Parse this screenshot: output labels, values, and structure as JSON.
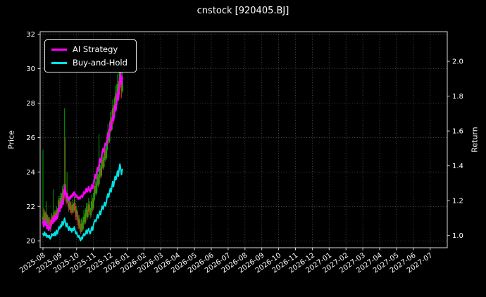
{
  "header": {
    "title": "cnstock [920405.BJ]"
  },
  "chart_data": {
    "type": "line+candlestick",
    "title": "cnstock [920405.BJ]",
    "background": "#000000",
    "grid": true,
    "grid_style": "dotted",
    "left_axis": {
      "label": "Price",
      "range": [
        19.6,
        32.15
      ],
      "ticks": [
        20,
        22,
        24,
        26,
        28,
        30,
        32
      ]
    },
    "right_axis": {
      "label": "Return",
      "range": [
        0.93,
        2.17
      ],
      "ticks": [
        1.0,
        1.2,
        1.4,
        1.6,
        1.8,
        2.0
      ]
    },
    "x_axis": {
      "tick_labels": [
        "2025-08",
        "2025-09",
        "2025-10",
        "2025-11",
        "2025-12",
        "2026-01",
        "2026-02",
        "2026-03",
        "2026-04",
        "2026-05",
        "2026-06",
        "2026-07",
        "2026-08",
        "2026-09",
        "2026-10",
        "2026-11",
        "2026-12",
        "2027-01",
        "2027-02",
        "2027-03",
        "2027-04",
        "2027-05",
        "2027-06",
        "2027-07"
      ],
      "label_rotation": -35
    },
    "legend": {
      "position": "upper left",
      "entries": [
        {
          "label": "AI Strategy",
          "color": "#ff00ff"
        },
        {
          "label": "Buy-and-Hold",
          "color": "#00e5e5"
        }
      ]
    },
    "days_per_month": 21,
    "series": [
      {
        "name": "AI Strategy",
        "axis": "right",
        "color": "#ff00ff",
        "width": 2.2,
        "values": [
          1.08,
          1.05,
          1.09,
          1.06,
          1.08,
          1.04,
          1.06,
          1.03,
          1.05,
          1.04,
          1.06,
          1.09,
          1.07,
          1.1,
          1.08,
          1.11,
          1.09,
          1.12,
          1.1,
          1.13,
          1.16,
          1.14,
          1.18,
          1.16,
          1.2,
          1.18,
          1.22,
          1.28,
          1.25,
          1.22,
          1.24,
          1.22,
          1.2,
          1.22,
          1.21,
          1.23,
          1.22,
          1.24,
          1.23,
          1.25,
          1.24,
          1.22,
          1.23,
          1.22,
          1.21,
          1.22,
          1.21,
          1.22,
          1.23,
          1.22,
          1.23,
          1.25,
          1.24,
          1.25,
          1.27,
          1.25,
          1.26,
          1.28,
          1.26,
          1.25,
          1.27,
          1.29,
          1.27,
          1.3,
          1.32,
          1.35,
          1.33,
          1.36,
          1.39,
          1.37,
          1.41,
          1.44,
          1.42,
          1.45,
          1.48,
          1.5,
          1.48,
          1.51,
          1.53,
          1.52,
          1.55,
          1.58,
          1.56,
          1.6,
          1.64,
          1.61,
          1.65,
          1.69,
          1.66,
          1.7,
          1.75,
          1.72,
          1.77,
          1.82,
          1.78,
          1.83,
          1.9,
          1.93,
          1.87,
          1.91
        ]
      },
      {
        "name": "Buy-and-Hold",
        "axis": "right",
        "color": "#00e5e5",
        "width": 2.0,
        "values": [
          1.01,
          1.0,
          1.02,
          1.0,
          1.01,
          0.99,
          1.0,
          0.99,
          1.0,
          0.98,
          0.99,
          1.01,
          1.0,
          1.01,
          1.0,
          1.02,
          1.0,
          1.03,
          1.01,
          1.03,
          1.05,
          1.04,
          1.06,
          1.05,
          1.08,
          1.06,
          1.08,
          1.1,
          1.07,
          1.05,
          1.07,
          1.05,
          1.03,
          1.05,
          1.03,
          1.04,
          1.02,
          1.04,
          1.03,
          1.05,
          1.03,
          1.01,
          1.02,
          1.0,
          0.99,
          1.0,
          0.98,
          0.97,
          0.99,
          0.98,
          1.0,
          1.01,
          1.0,
          1.01,
          1.03,
          1.01,
          1.03,
          1.04,
          1.02,
          1.01,
          1.03,
          1.05,
          1.03,
          1.06,
          1.08,
          1.09,
          1.08,
          1.1,
          1.12,
          1.1,
          1.12,
          1.14,
          1.12,
          1.15,
          1.17,
          1.15,
          1.17,
          1.19,
          1.17,
          1.19,
          1.22,
          1.24,
          1.22,
          1.25,
          1.27,
          1.25,
          1.28,
          1.31,
          1.28,
          1.31,
          1.34,
          1.32,
          1.34,
          1.37,
          1.34,
          1.38,
          1.41,
          1.38,
          1.35,
          1.38
        ]
      }
    ],
    "candles": {
      "axis": "left",
      "up_color": "#00b400",
      "down_color": "#d43030",
      "ohlc": [
        [
          21.2,
          25.3,
          21.0,
          21.4
        ],
        [
          21.4,
          21.9,
          21.0,
          21.1
        ],
        [
          21.1,
          21.8,
          21.0,
          21.6
        ],
        [
          21.6,
          21.7,
          21.0,
          21.2
        ],
        [
          21.2,
          22.3,
          21.1,
          21.5
        ],
        [
          21.5,
          21.6,
          20.8,
          21.0
        ],
        [
          21.0,
          21.5,
          20.9,
          21.3
        ],
        [
          21.3,
          21.4,
          20.6,
          20.9
        ],
        [
          20.9,
          21.4,
          20.8,
          21.2
        ],
        [
          21.2,
          21.3,
          20.5,
          20.8
        ],
        [
          20.8,
          21.2,
          20.6,
          21.0
        ],
        [
          21.0,
          21.6,
          20.9,
          21.4
        ],
        [
          21.4,
          21.5,
          21.0,
          21.1
        ],
        [
          21.1,
          23.0,
          21.0,
          21.5
        ],
        [
          21.5,
          21.7,
          21.1,
          21.2
        ],
        [
          21.2,
          21.8,
          21.1,
          21.6
        ],
        [
          21.6,
          21.7,
          21.2,
          21.3
        ],
        [
          21.3,
          22.0,
          21.2,
          21.8
        ],
        [
          21.8,
          21.9,
          21.4,
          21.5
        ],
        [
          21.5,
          22.4,
          21.4,
          21.9
        ],
        [
          21.9,
          22.6,
          21.8,
          22.3
        ],
        [
          22.3,
          22.5,
          21.9,
          22.0
        ],
        [
          22.0,
          22.8,
          21.9,
          22.5
        ],
        [
          22.5,
          22.7,
          22.0,
          22.2
        ],
        [
          22.2,
          23.2,
          22.1,
          22.8
        ],
        [
          22.8,
          23.0,
          22.3,
          22.4
        ],
        [
          22.4,
          23.3,
          22.3,
          22.9
        ],
        [
          22.9,
          27.7,
          22.8,
          23.3
        ],
        [
          23.3,
          26.0,
          22.5,
          22.7
        ],
        [
          22.7,
          22.9,
          22.1,
          22.3
        ],
        [
          22.3,
          24.0,
          22.2,
          22.6
        ],
        [
          22.6,
          22.8,
          22.0,
          22.2
        ],
        [
          22.2,
          22.4,
          21.7,
          21.9
        ],
        [
          21.9,
          22.5,
          21.8,
          22.2
        ],
        [
          22.2,
          22.3,
          21.6,
          21.8
        ],
        [
          21.8,
          22.3,
          21.6,
          22.0
        ],
        [
          22.0,
          22.1,
          21.5,
          21.7
        ],
        [
          21.7,
          22.4,
          21.6,
          22.1
        ],
        [
          22.1,
          22.2,
          21.6,
          21.8
        ],
        [
          21.8,
          22.6,
          21.7,
          22.2
        ],
        [
          22.2,
          22.4,
          21.6,
          21.8
        ],
        [
          21.8,
          22.0,
          21.2,
          21.4
        ],
        [
          21.4,
          22.0,
          21.2,
          21.7
        ],
        [
          21.7,
          21.8,
          21.1,
          21.3
        ],
        [
          21.3,
          21.5,
          20.7,
          20.9
        ],
        [
          20.9,
          21.5,
          20.7,
          21.2
        ],
        [
          21.2,
          21.3,
          20.5,
          20.8
        ],
        [
          20.8,
          21.0,
          20.4,
          20.6
        ],
        [
          20.6,
          21.3,
          20.5,
          21.0
        ],
        [
          21.0,
          21.2,
          20.5,
          20.7
        ],
        [
          20.7,
          21.4,
          20.6,
          21.1
        ],
        [
          21.1,
          21.8,
          21.0,
          21.4
        ],
        [
          21.4,
          21.6,
          20.9,
          21.1
        ],
        [
          21.1,
          21.9,
          21.0,
          21.5
        ],
        [
          21.5,
          22.2,
          21.4,
          21.8
        ],
        [
          21.8,
          22.0,
          21.2,
          21.4
        ],
        [
          21.4,
          22.2,
          21.3,
          21.8
        ],
        [
          21.8,
          22.5,
          21.7,
          22.1
        ],
        [
          22.1,
          22.3,
          21.5,
          21.7
        ],
        [
          21.7,
          21.9,
          21.3,
          21.5
        ],
        [
          21.5,
          22.3,
          21.4,
          21.9
        ],
        [
          21.9,
          22.7,
          21.8,
          22.3
        ],
        [
          22.3,
          22.5,
          21.7,
          21.9
        ],
        [
          21.9,
          22.8,
          21.8,
          22.4
        ],
        [
          22.4,
          23.2,
          22.3,
          22.8
        ],
        [
          22.8,
          23.7,
          22.7,
          23.2
        ],
        [
          23.2,
          23.4,
          22.6,
          22.8
        ],
        [
          22.8,
          23.8,
          22.7,
          23.3
        ],
        [
          23.3,
          24.2,
          23.2,
          23.7
        ],
        [
          23.7,
          23.9,
          23.1,
          23.3
        ],
        [
          23.3,
          26.2,
          23.2,
          23.8
        ],
        [
          23.8,
          24.7,
          23.7,
          24.2
        ],
        [
          24.2,
          24.4,
          23.6,
          23.8
        ],
        [
          23.8,
          24.8,
          23.7,
          24.3
        ],
        [
          24.3,
          25.2,
          24.2,
          24.7
        ],
        [
          24.7,
          24.9,
          24.1,
          24.3
        ],
        [
          24.3,
          25.3,
          24.2,
          24.8
        ],
        [
          24.8,
          25.7,
          24.7,
          25.2
        ],
        [
          25.2,
          25.4,
          24.6,
          24.8
        ],
        [
          24.8,
          25.8,
          24.7,
          25.3
        ],
        [
          25.3,
          26.3,
          25.2,
          25.8
        ],
        [
          25.8,
          26.8,
          25.7,
          26.3
        ],
        [
          26.3,
          26.5,
          25.6,
          25.8
        ],
        [
          25.8,
          26.9,
          25.7,
          26.4
        ],
        [
          26.4,
          27.5,
          26.3,
          27.0
        ],
        [
          27.0,
          27.2,
          26.3,
          26.5
        ],
        [
          26.5,
          27.6,
          26.4,
          27.1
        ],
        [
          27.1,
          28.2,
          27.0,
          27.7
        ],
        [
          27.7,
          27.9,
          26.8,
          27.2
        ],
        [
          27.2,
          28.3,
          27.1,
          27.8
        ],
        [
          27.8,
          29.0,
          27.7,
          28.4
        ],
        [
          28.4,
          28.6,
          27.5,
          27.9
        ],
        [
          27.9,
          29.1,
          27.8,
          28.5
        ],
        [
          28.5,
          29.7,
          28.4,
          29.1
        ],
        [
          29.1,
          29.3,
          28.1,
          28.5
        ],
        [
          28.5,
          29.8,
          28.4,
          29.2
        ],
        [
          29.2,
          30.3,
          29.1,
          29.8
        ],
        [
          29.8,
          30.0,
          28.9,
          29.2
        ],
        [
          29.2,
          29.5,
          28.3,
          28.7
        ],
        [
          28.7,
          29.8,
          28.6,
          29.3
        ]
      ]
    }
  }
}
